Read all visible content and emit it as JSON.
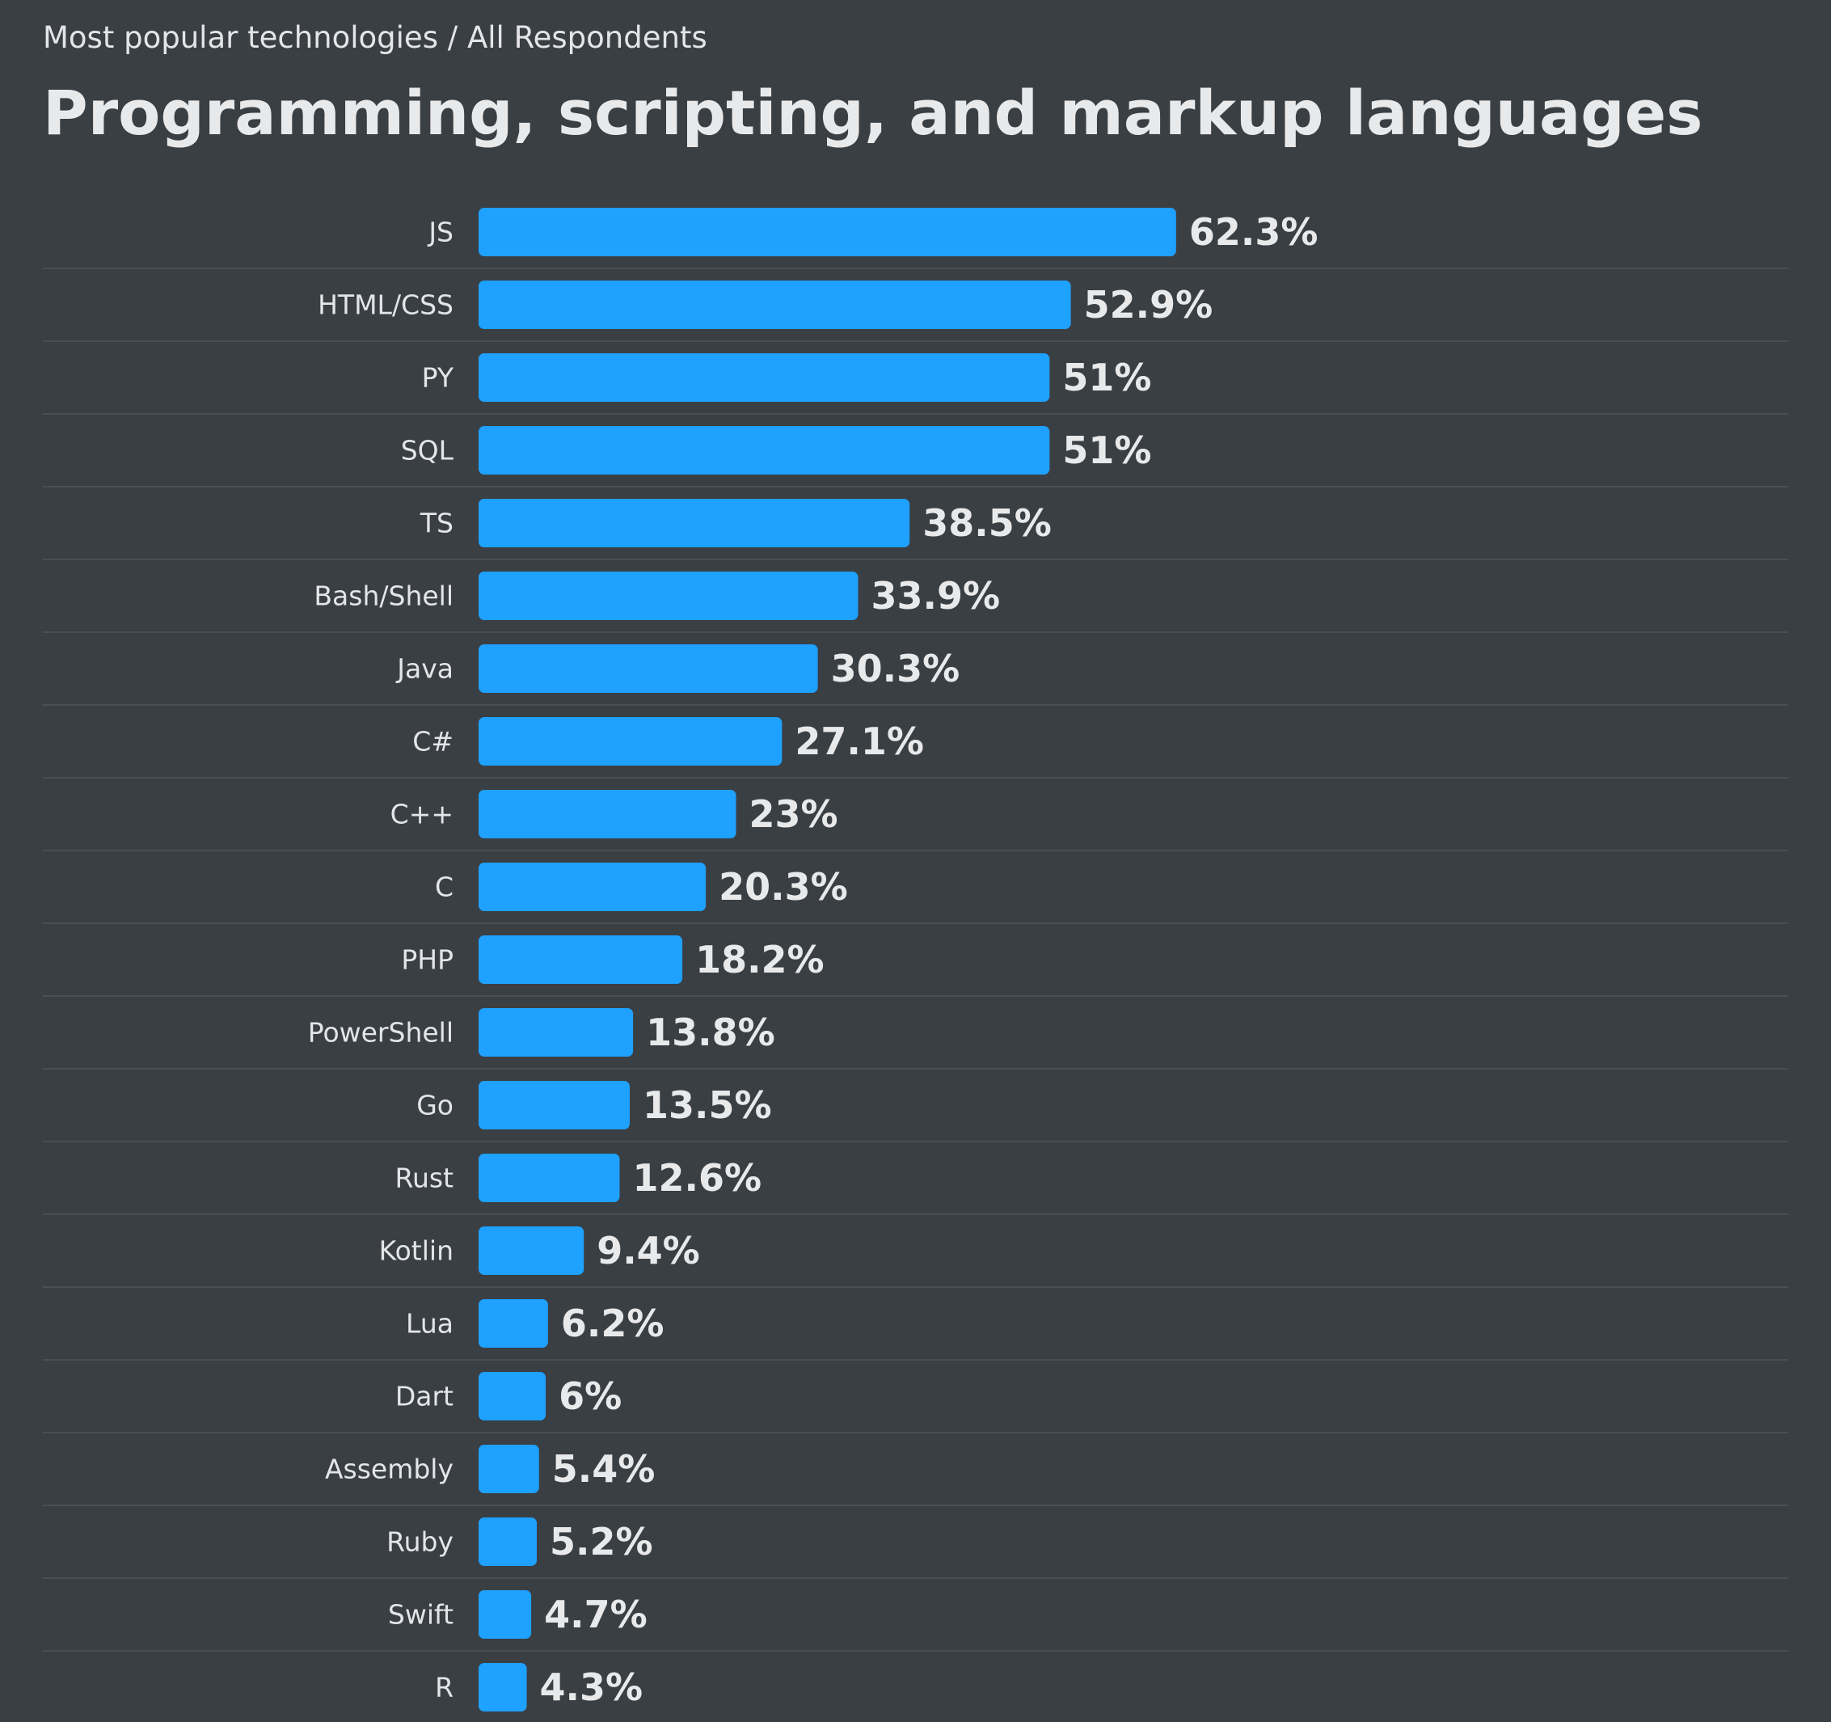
{
  "header": {
    "subtitle": "Most popular technologies / All Respondents",
    "title": "Programming, scripting, and markup languages"
  },
  "colors": {
    "background": "#3a3f44",
    "bar": "#1ea1ff",
    "text": "#e8e9ea",
    "separator": "#4a4f55"
  },
  "chart_data": {
    "type": "bar",
    "orientation": "horizontal",
    "title": "Programming, scripting, and markup languages",
    "subtitle": "Most popular technologies / All Respondents",
    "categories": [
      "JS",
      "HTML/CSS",
      "PY",
      "SQL",
      "TS",
      "Bash/Shell",
      "Java",
      "C#",
      "C++",
      "C",
      "PHP",
      "PowerShell",
      "Go",
      "Rust",
      "Kotlin",
      "Lua",
      "Dart",
      "Assembly",
      "Ruby",
      "Swift",
      "R"
    ],
    "values": [
      62.3,
      52.9,
      51,
      51,
      38.5,
      33.9,
      30.3,
      27.1,
      23,
      20.3,
      18.2,
      13.8,
      13.5,
      12.6,
      9.4,
      6.2,
      6,
      5.4,
      5.2,
      4.7,
      4.3
    ],
    "value_labels": [
      "62.3%",
      "52.9%",
      "51%",
      "51%",
      "38.5%",
      "33.9%",
      "30.3%",
      "27.1%",
      "23%",
      "20.3%",
      "18.2%",
      "13.8%",
      "13.5%",
      "12.6%",
      "9.4%",
      "6.2%",
      "6%",
      "5.4%",
      "5.2%",
      "4.7%",
      "4.3%"
    ],
    "xlim": [
      0,
      100
    ],
    "grid": false,
    "legend": "none"
  }
}
